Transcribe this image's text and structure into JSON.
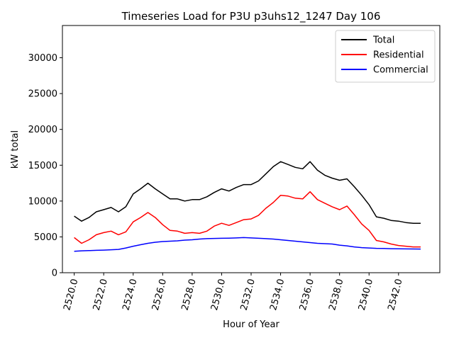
{
  "chart_data": {
    "type": "line",
    "title": "Timeseries Load for P3U p3uhs12_1247  Day 106",
    "xlabel": "Hour of Year",
    "ylabel": "kW total",
    "xlim": [
      2519.2,
      2544.8
    ],
    "ylim": [
      0,
      34500
    ],
    "x_ticks": [
      2520,
      2522,
      2524,
      2526,
      2528,
      2530,
      2532,
      2534,
      2536,
      2538,
      2540,
      2542
    ],
    "x_tick_labels": [
      "2520.0",
      "2522.0",
      "2524.0",
      "2526.0",
      "2528.0",
      "2530.0",
      "2532.0",
      "2534.0",
      "2536.0",
      "2538.0",
      "2540.0",
      "2542.0"
    ],
    "y_ticks": [
      0,
      5000,
      10000,
      15000,
      20000,
      25000,
      30000
    ],
    "y_tick_labels": [
      "0",
      "5000",
      "10000",
      "15000",
      "20000",
      "25000",
      "30000"
    ],
    "legend_position": "top-right",
    "grid": false,
    "x": [
      2520,
      2520.5,
      2521,
      2521.5,
      2522,
      2522.5,
      2523,
      2523.5,
      2524,
      2524.5,
      2525,
      2525.5,
      2526,
      2526.5,
      2527,
      2527.5,
      2528,
      2528.5,
      2529,
      2529.5,
      2530,
      2530.5,
      2531,
      2531.5,
      2532,
      2532.5,
      2533,
      2533.5,
      2534,
      2534.5,
      2535,
      2535.5,
      2536,
      2536.5,
      2537,
      2537.5,
      2538,
      2538.5,
      2539,
      2539.5,
      2540,
      2540.5,
      2541,
      2541.5,
      2542,
      2542.5,
      2543,
      2543.5
    ],
    "series": [
      {
        "name": "Total",
        "color": "#000000",
        "values": [
          7900,
          7200,
          7700,
          8500,
          8800,
          9100,
          8500,
          9200,
          11000,
          11700,
          12500,
          11700,
          11000,
          10300,
          10300,
          10000,
          10200,
          10200,
          10600,
          11200,
          11700,
          11400,
          11900,
          12300,
          12300,
          12800,
          13800,
          14800,
          15500,
          15100,
          14700,
          14500,
          15500,
          14300,
          13600,
          13200,
          12900,
          13100,
          12000,
          10800,
          9500,
          7800,
          7600,
          7300,
          7200,
          7000,
          6900,
          6900
        ]
      },
      {
        "name": "Residential",
        "color": "#ff0000",
        "values": [
          4900,
          4100,
          4600,
          5300,
          5600,
          5800,
          5300,
          5700,
          7100,
          7700,
          8400,
          7700,
          6700,
          5900,
          5800,
          5500,
          5600,
          5500,
          5800,
          6500,
          6900,
          6600,
          7000,
          7400,
          7500,
          8000,
          9000,
          9800,
          10800,
          10700,
          10400,
          10300,
          11300,
          10200,
          9700,
          9200,
          8800,
          9300,
          8100,
          6800,
          5900,
          4500,
          4300,
          4000,
          3800,
          3700,
          3600,
          3600
        ]
      },
      {
        "name": "Commercial",
        "color": "#0000ff",
        "values": [
          3000,
          3050,
          3080,
          3120,
          3150,
          3200,
          3250,
          3450,
          3700,
          3900,
          4100,
          4250,
          4350,
          4400,
          4450,
          4550,
          4600,
          4700,
          4750,
          4780,
          4800,
          4820,
          4850,
          4900,
          4850,
          4800,
          4750,
          4700,
          4600,
          4500,
          4400,
          4300,
          4200,
          4100,
          4050,
          4000,
          3850,
          3750,
          3600,
          3500,
          3450,
          3400,
          3380,
          3350,
          3330,
          3320,
          3310,
          3300
        ]
      }
    ]
  }
}
